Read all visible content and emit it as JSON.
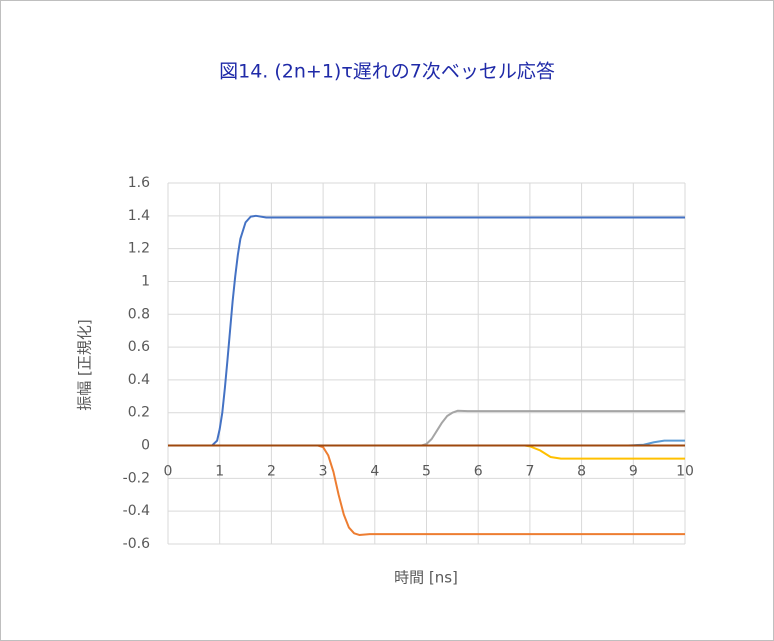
{
  "chart_data": {
    "type": "line",
    "title": "図14. (2n+1)τ遅れの7次ベッセル応答",
    "x_label": "時間 [ns]",
    "y_label": "振幅 [正規化]",
    "xlim": [
      0,
      10
    ],
    "xticks": [
      0,
      1,
      2,
      3,
      4,
      5,
      6,
      7,
      8,
      9,
      10
    ],
    "ylim": [
      -0.6,
      1.6
    ],
    "yticks": [
      -0.6,
      -0.4,
      -0.2,
      0,
      0.2,
      0.4,
      0.6,
      0.8,
      1,
      1.2,
      1.4,
      1.6
    ],
    "grid": true,
    "series": [
      {
        "color": "#4472c4",
        "x": [
          0,
          0.85,
          0.95,
          1.0,
          1.05,
          1.1,
          1.15,
          1.2,
          1.25,
          1.3,
          1.35,
          1.4,
          1.5,
          1.6,
          1.7,
          1.9,
          2.3,
          10
        ],
        "values": [
          0,
          0,
          0.03,
          0.1,
          0.2,
          0.35,
          0.52,
          0.7,
          0.88,
          1.03,
          1.16,
          1.26,
          1.36,
          1.395,
          1.4,
          1.39,
          1.39,
          1.39
        ]
      },
      {
        "color": "#ed7d31",
        "x": [
          0,
          2.9,
          3.0,
          3.1,
          3.2,
          3.3,
          3.4,
          3.5,
          3.6,
          3.7,
          3.9,
          10
        ],
        "values": [
          0,
          0,
          -0.01,
          -0.06,
          -0.16,
          -0.3,
          -0.42,
          -0.5,
          -0.535,
          -0.545,
          -0.54,
          -0.54
        ]
      },
      {
        "color": "#a5a5a5",
        "x": [
          0,
          4.9,
          5.0,
          5.1,
          5.2,
          5.3,
          5.4,
          5.5,
          5.6,
          5.8,
          10
        ],
        "values": [
          0,
          0,
          0.01,
          0.04,
          0.09,
          0.14,
          0.18,
          0.2,
          0.212,
          0.21,
          0.21
        ]
      },
      {
        "color": "#ffc000",
        "x": [
          0,
          6.9,
          7.0,
          7.2,
          7.4,
          7.6,
          10
        ],
        "values": [
          0,
          0,
          -0.005,
          -0.03,
          -0.07,
          -0.08,
          -0.08
        ]
      },
      {
        "color": "#5b9bd5",
        "x": [
          0,
          8.9,
          9.2,
          9.4,
          9.6,
          10
        ],
        "values": [
          0,
          0,
          0.005,
          0.02,
          0.03,
          0.03
        ]
      },
      {
        "color": "#9e480e",
        "x": [
          0,
          10
        ],
        "values": [
          0,
          0
        ]
      }
    ]
  }
}
